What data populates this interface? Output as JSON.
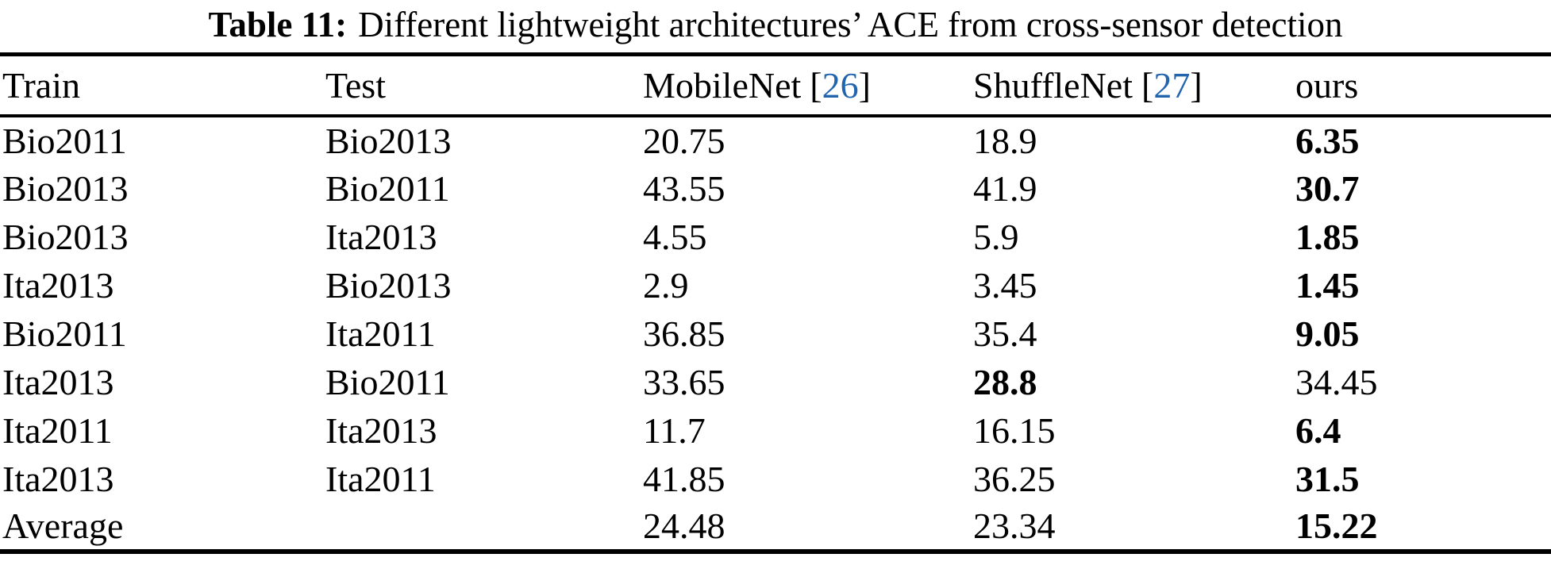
{
  "figure": {
    "caption_label": "Table 11:",
    "caption_text": "Different lightweight architectures’ ACE from cross-sensor detection"
  },
  "table": {
    "columns": [
      {
        "key": "train",
        "label": "Train"
      },
      {
        "key": "test",
        "label": "Test"
      },
      {
        "key": "mobilenet",
        "label": "MobileNet",
        "cite_open": "[",
        "cite_num": "26",
        "cite_close": "]"
      },
      {
        "key": "shufflenet",
        "label": "ShuffleNet",
        "cite_open": "[",
        "cite_num": "27",
        "cite_close": "]"
      },
      {
        "key": "ours",
        "label": "ours"
      }
    ],
    "rows": [
      {
        "cells": [
          {
            "text": "Bio2011"
          },
          {
            "text": "Bio2013"
          },
          {
            "text": "20.75"
          },
          {
            "text": "18.9"
          },
          {
            "text": "6.35",
            "bold": true
          }
        ]
      },
      {
        "cells": [
          {
            "text": "Bio2013"
          },
          {
            "text": "Bio2011"
          },
          {
            "text": "43.55"
          },
          {
            "text": "41.9"
          },
          {
            "text": "30.7",
            "bold": true
          }
        ]
      },
      {
        "cells": [
          {
            "text": "Bio2013"
          },
          {
            "text": "Ita2013"
          },
          {
            "text": "4.55"
          },
          {
            "text": "5.9"
          },
          {
            "text": "1.85",
            "bold": true
          }
        ]
      },
      {
        "cells": [
          {
            "text": "Ita2013"
          },
          {
            "text": "Bio2013"
          },
          {
            "text": "2.9"
          },
          {
            "text": "3.45"
          },
          {
            "text": "1.45",
            "bold": true
          }
        ]
      },
      {
        "cells": [
          {
            "text": "Bio2011"
          },
          {
            "text": "Ita2011"
          },
          {
            "text": "36.85"
          },
          {
            "text": "35.4"
          },
          {
            "text": "9.05",
            "bold": true
          }
        ]
      },
      {
        "cells": [
          {
            "text": "Ita2013"
          },
          {
            "text": "Bio2011"
          },
          {
            "text": "33.65"
          },
          {
            "text": "28.8",
            "bold": true
          },
          {
            "text": "34.45"
          }
        ]
      },
      {
        "cells": [
          {
            "text": "Ita2011"
          },
          {
            "text": "Ita2013"
          },
          {
            "text": "11.7"
          },
          {
            "text": "16.15"
          },
          {
            "text": "6.4",
            "bold": true
          }
        ]
      },
      {
        "cells": [
          {
            "text": "Ita2013"
          },
          {
            "text": "Ita2011"
          },
          {
            "text": "41.85"
          },
          {
            "text": "36.25"
          },
          {
            "text": "31.5",
            "bold": true
          }
        ]
      },
      {
        "cells": [
          {
            "text": "Average"
          },
          {
            "text": ""
          },
          {
            "text": "24.48"
          },
          {
            "text": "23.34"
          },
          {
            "text": "15.22",
            "bold": true
          }
        ]
      }
    ]
  },
  "colors": {
    "citation_blue": "#2265AE",
    "text": "#000000",
    "background": "#FFFFFF",
    "rule": "#000000"
  }
}
